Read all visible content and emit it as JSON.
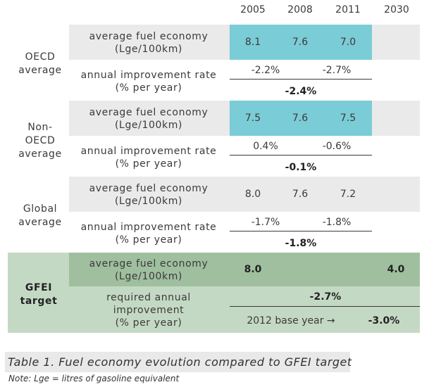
{
  "columns": [
    "2005",
    "2008",
    "2011",
    "2030"
  ],
  "groups": {
    "oecd": {
      "label": "OECD\naverage",
      "row1_label": "average fuel economy\n(Lge/100km)",
      "values": [
        "8.1",
        "7.6",
        "7.0"
      ],
      "row2_label": "annual improvement rate\n(% per year)",
      "rates": [
        "-2.2%",
        "-2.7%"
      ],
      "total": "-2.4%"
    },
    "non_oecd": {
      "label": "Non-\nOECD\naverage",
      "row1_label": "average fuel economy\n(Lge/100km)",
      "values": [
        "7.5",
        "7.6",
        "7.5"
      ],
      "row2_label": "annual improvement rate\n(% per year)",
      "rates": [
        "0.4%",
        "-0.6%"
      ],
      "total": "-0.1%"
    },
    "global": {
      "label": "Global\naverage",
      "row1_label": "average fuel economy\n(Lge/100km)",
      "values": [
        "8.0",
        "7.6",
        "7.2"
      ],
      "row2_label": "annual improvement rate\n(% per year)",
      "rates": [
        "-1.7%",
        "-1.8%"
      ],
      "total": "-1.8%"
    },
    "gfei": {
      "label": "GFEI\ntarget",
      "row1_label": "average fuel economy\n(Lge/100km)",
      "value_2005": "8.0",
      "value_2030": "4.0",
      "row2_label": "required annual\nimprovement\n(% per year)",
      "required": "-2.7%",
      "base_note": "2012 base year →",
      "base_value": "-3.0%"
    }
  },
  "caption": "Table 1. Fuel economy evolution compared to GFEI target",
  "note": "Note: Lge = litres of gasoline equivalent",
  "colors": {
    "teal": "#7accd6",
    "gray_band": "#eaeaea",
    "gfei_dark": "#9fbf9f",
    "gfei_light": "#c4d9c4"
  }
}
